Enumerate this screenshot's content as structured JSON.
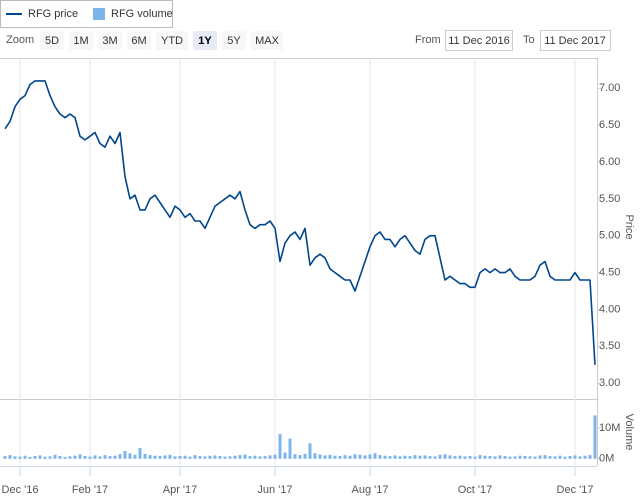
{
  "chart_data": {
    "type": "line",
    "zoom": {
      "label": "Zoom",
      "buttons": [
        "5D",
        "1M",
        "3M",
        "6M",
        "YTD",
        "1Y",
        "5Y",
        "MAX"
      ],
      "selected_index": 5
    },
    "range": {
      "from_label": "From",
      "from": "11 Dec 2016",
      "to_label": "To",
      "to": "11 Dec 2017"
    },
    "y_label": "Price",
    "y2_label": "Volume",
    "categories": [
      null,
      null,
      null,
      "Dec '16",
      null,
      null,
      null,
      null,
      null,
      null,
      null,
      null,
      null,
      null,
      null,
      null,
      null,
      "Feb '17",
      null,
      null,
      null,
      null,
      null,
      null,
      null,
      null,
      null,
      null,
      null,
      null,
      null,
      null,
      null,
      null,
      null,
      "Apr '17",
      null,
      null,
      null,
      null,
      null,
      null,
      null,
      null,
      null,
      null,
      null,
      null,
      null,
      null,
      null,
      null,
      null,
      null,
      "Jun '17",
      null,
      null,
      null,
      null,
      null,
      null,
      null,
      null,
      null,
      null,
      null,
      null,
      null,
      null,
      null,
      null,
      null,
      null,
      "Aug '17",
      null,
      null,
      null,
      null,
      null,
      null,
      null,
      null,
      null,
      null,
      null,
      null,
      null,
      null,
      null,
      null,
      null,
      null,
      null,
      null,
      "Oct '17",
      null,
      null,
      null,
      null,
      null,
      null,
      null,
      null,
      null,
      null,
      null,
      null,
      null,
      null,
      null,
      null,
      null,
      null,
      null,
      "Dec '17",
      null,
      null,
      null,
      null
    ],
    "series": [
      {
        "name": "RFG price",
        "color": "#00468c",
        "values": [
          6.45,
          6.55,
          6.75,
          6.85,
          6.9,
          7.05,
          7.1,
          7.1,
          7.1,
          6.9,
          6.75,
          6.65,
          6.6,
          6.65,
          6.6,
          6.35,
          6.3,
          6.35,
          6.4,
          6.25,
          6.2,
          6.35,
          6.25,
          6.4,
          5.8,
          5.5,
          5.55,
          5.35,
          5.35,
          5.5,
          5.55,
          5.45,
          5.35,
          5.25,
          5.4,
          5.35,
          5.25,
          5.3,
          5.2,
          5.2,
          5.1,
          5.25,
          5.4,
          5.45,
          5.5,
          5.55,
          5.5,
          5.6,
          5.35,
          5.15,
          5.1,
          5.15,
          5.15,
          5.2,
          5.1,
          4.65,
          4.9,
          5.0,
          5.05,
          4.95,
          5.1,
          4.6,
          4.7,
          4.75,
          4.7,
          4.55,
          4.5,
          4.45,
          4.4,
          4.4,
          4.25,
          4.45,
          4.65,
          4.85,
          5.0,
          5.05,
          4.95,
          4.95,
          4.85,
          4.95,
          5.0,
          4.9,
          4.8,
          4.75,
          4.95,
          5.0,
          5.0,
          4.7,
          4.4,
          4.45,
          4.4,
          4.35,
          4.35,
          4.3,
          4.3,
          4.5,
          4.55,
          4.5,
          4.55,
          4.5,
          4.5,
          4.55,
          4.45,
          4.4,
          4.4,
          4.4,
          4.45,
          4.6,
          4.65,
          4.45,
          4.4,
          4.4,
          4.4,
          4.4,
          4.5,
          4.4,
          4.4,
          4.4,
          3.25
        ]
      },
      {
        "name": "RFG volume",
        "color": "#7cb5ec",
        "axis": "y2",
        "values": [
          900000,
          1200000,
          800000,
          700000,
          1000000,
          600000,
          900000,
          1100000,
          700000,
          800000,
          1300000,
          900000,
          600000,
          800000,
          1000000,
          1400000,
          900000,
          700000,
          1100000,
          800000,
          1200000,
          900000,
          1000000,
          1500000,
          2500000,
          1800000,
          1300000,
          3500000,
          1600000,
          1200000,
          1000000,
          900000,
          1100000,
          1300000,
          800000,
          900000,
          1000000,
          700000,
          1200000,
          900000,
          800000,
          1000000,
          1100000,
          900000,
          700000,
          800000,
          1000000,
          1200000,
          1400000,
          900000,
          1000000,
          800000,
          900000,
          1100000,
          1300000,
          8000000,
          2000000,
          6500000,
          1500000,
          1200000,
          1600000,
          5000000,
          1800000,
          1400000,
          1100000,
          1300000,
          1000000,
          900000,
          1200000,
          1000000,
          1500000,
          1300000,
          1100000,
          1400000,
          1800000,
          1200000,
          1000000,
          900000,
          1100000,
          800000,
          1000000,
          900000,
          1200000,
          1000000,
          1100000,
          900000,
          800000,
          1300000,
          1500000,
          1100000,
          900000,
          1000000,
          800000,
          900000,
          700000,
          1200000,
          1000000,
          900000,
          800000,
          1100000,
          900000,
          700000,
          800000,
          1000000,
          900000,
          800000,
          700000,
          1100000,
          1200000,
          900000,
          800000,
          1000000,
          700000,
          900000,
          1100000,
          800000,
          1000000,
          1200000,
          14000000
        ]
      }
    ],
    "ylim": [
      2.84,
      7.41
    ],
    "yticks": [
      {
        "value": 3,
        "label": "3.00"
      },
      {
        "value": 3.5,
        "label": "3.50"
      },
      {
        "value": 4,
        "label": "4.00"
      },
      {
        "value": 4.5,
        "label": "4.50"
      },
      {
        "value": 5,
        "label": "5.00"
      },
      {
        "value": 5.5,
        "label": "5.50"
      },
      {
        "value": 6,
        "label": "6.00"
      },
      {
        "value": 6.5,
        "label": "6.50"
      },
      {
        "value": 7,
        "label": "7.00"
      }
    ],
    "y2lim": [
      -2000000,
      19000000
    ],
    "y2ticks": [
      {
        "value": 0,
        "label": "0M"
      },
      {
        "value": 10000000,
        "label": "10M"
      }
    ],
    "grid": true
  }
}
